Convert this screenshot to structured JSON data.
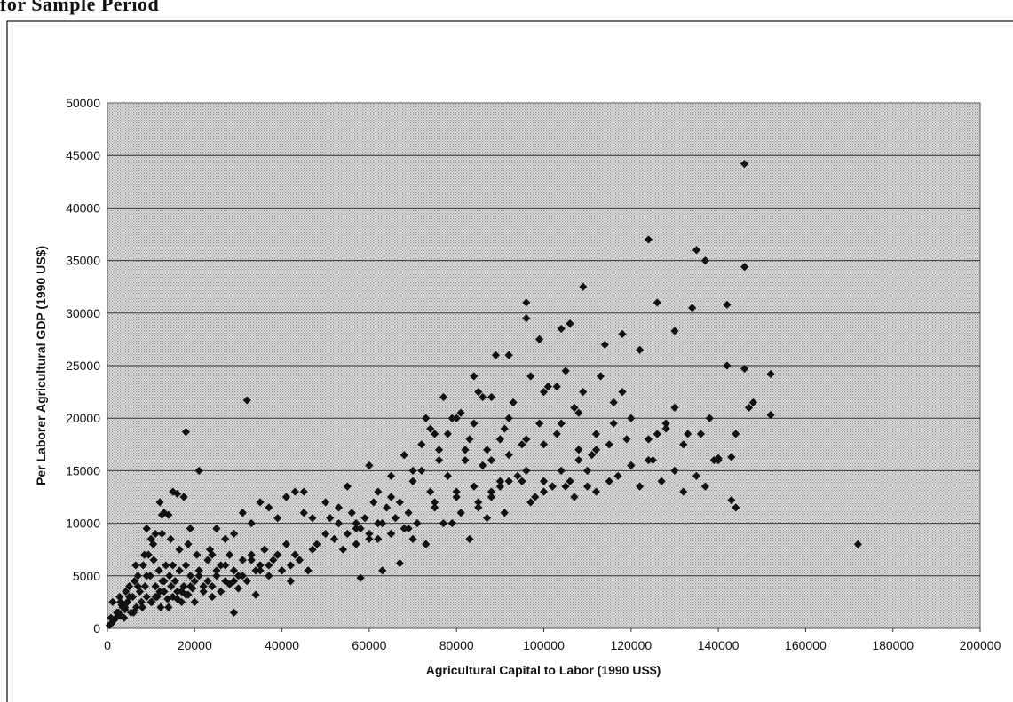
{
  "page": {
    "heading": "for Sample Period"
  },
  "chart_data": {
    "type": "scatter",
    "title": "",
    "xlabel": "Agricultural Capital to Labor (1990 US$)",
    "ylabel": "Per Laborer Agricultural GDP (1990 US$)",
    "xlim": [
      0,
      200000
    ],
    "ylim": [
      0,
      50000
    ],
    "x_ticks": [
      "0",
      "20000",
      "40000",
      "60000",
      "80000",
      "100000",
      "120000",
      "140000",
      "160000",
      "180000",
      "200000"
    ],
    "y_ticks": [
      "0",
      "5000",
      "10000",
      "15000",
      "20000",
      "25000",
      "30000",
      "35000",
      "40000",
      "45000",
      "50000"
    ],
    "grid": "horizontal",
    "background": "gray-dotted",
    "marker": "diamond",
    "marker_color": "#111111",
    "series": [
      {
        "x": [
          500,
          1000,
          1500,
          2000,
          2500,
          3000,
          3500,
          4000,
          800,
          1200,
          2200,
          2800,
          3300,
          3800,
          4200,
          4600,
          5000,
          5400,
          5800,
          6200,
          6600,
          7000,
          7400,
          7800,
          8200,
          8600,
          9000,
          9400,
          9800,
          10200,
          10600,
          11000,
          11400,
          11800,
          12200,
          12600,
          13000,
          13400,
          13800,
          14200,
          14600,
          15000,
          15500,
          16000,
          16500,
          17000,
          17500,
          18000,
          18500,
          19000,
          19500,
          20000,
          21000,
          22000,
          23000,
          24000,
          25000,
          26000,
          27000,
          28000,
          29000,
          30000,
          31000,
          32000,
          33000,
          34000,
          35000,
          36000,
          37000,
          38000,
          39000,
          40000,
          41000,
          42000,
          43000,
          44000,
          3000,
          5000,
          7000,
          9000,
          11000,
          13000,
          15000,
          17000,
          19000,
          21000,
          23000,
          25000,
          27000,
          29000,
          31000,
          33000,
          35000,
          37000,
          39000,
          6000,
          8000,
          10000,
          12000,
          14000,
          16000,
          18000,
          20000,
          22000,
          24000,
          26000,
          28000,
          30000,
          4000,
          6500,
          8500,
          10500,
          12500,
          14500,
          16500,
          18500,
          20500,
          9000,
          10000,
          11000,
          12000,
          12500,
          13000,
          14000,
          15000,
          16000,
          17500,
          19000,
          21000,
          23500,
          25000,
          27000,
          29000,
          31000,
          33000,
          35000,
          37000,
          39000,
          41000,
          43000,
          45000,
          18000,
          32000,
          24000,
          29000,
          34000,
          36000,
          40000,
          42000,
          44000,
          46000,
          47000,
          48000,
          50000,
          51000,
          52000,
          53000,
          54000,
          55000,
          56000,
          57000,
          58000,
          59000,
          60000,
          61000,
          62000,
          63000,
          64000,
          65000,
          66000,
          67000,
          68000,
          69000,
          70000,
          45000,
          50000,
          55000,
          57000,
          60000,
          62000,
          65000,
          68000,
          70000,
          72000,
          74000,
          76000,
          78000,
          80000,
          82000,
          84000,
          86000,
          88000,
          90000,
          47000,
          53000,
          58000,
          63000,
          67000,
          71000,
          75000,
          79000,
          83000,
          87000,
          91000,
          72000,
          74000,
          76000,
          78000,
          80000,
          82000,
          84000,
          86000,
          88000,
          90000,
          92000,
          94000,
          96000,
          98000,
          100000,
          102000,
          104000,
          106000,
          108000,
          110000,
          73000,
          77000,
          81000,
          85000,
          89000,
          93000,
          97000,
          101000,
          105000,
          109000,
          113000,
          75000,
          79000,
          83000,
          87000,
          91000,
          95000,
          99000,
          103000,
          107000,
          111000,
          115000,
          119000,
          84000,
          88000,
          92000,
          96000,
          100000,
          104000,
          108000,
          112000,
          116000,
          120000,
          124000,
          128000,
          92000,
          96000,
          100000,
          104000,
          108000,
          112000,
          116000,
          120000,
          124000,
          128000,
          132000,
          136000,
          140000,
          144000,
          148000,
          152000,
          96000,
          99000,
          103000,
          106000,
          109000,
          114000,
          118000,
          122000,
          126000,
          130000,
          134000,
          138000,
          142000,
          146000,
          118000,
          124000,
          126000,
          130000,
          135000,
          137000,
          140000,
          142000,
          143000,
          144000,
          146000,
          147000,
          133000,
          139000,
          143000,
          146000,
          152000,
          172000,
          62000,
          57000,
          60000,
          65000,
          69000,
          73000,
          77000,
          81000,
          85000,
          90000,
          95000,
          100000,
          105000,
          110000,
          115000,
          120000,
          125000,
          130000,
          135000,
          65000,
          70000,
          75000,
          80000,
          85000,
          88000,
          92000,
          97000,
          102000,
          107000,
          112000,
          117000,
          122000,
          127000,
          132000,
          137000
        ],
        "y": [
          300,
          500,
          800,
          1000,
          1500,
          1200,
          2000,
          1800,
          1000,
          2500,
          1500,
          3000,
          2200,
          1000,
          3500,
          2500,
          4000,
          1500,
          3000,
          4500,
          2000,
          5000,
          3500,
          2500,
          6000,
          4000,
          3000,
          7000,
          5000,
          2500,
          6500,
          4000,
          3000,
          5500,
          2000,
          4500,
          3500,
          6000,
          2800,
          5000,
          4000,
          3000,
          4500,
          3500,
          5500,
          2500,
          4000,
          6000,
          3200,
          5000,
          3800,
          4500,
          5500,
          3500,
          6500,
          4000,
          5000,
          6000,
          4500,
          7000,
          5500,
          5000,
          6500,
          4500,
          7000,
          5500,
          6000,
          7500,
          5000,
          6500,
          7000,
          5500,
          8000,
          6000,
          7000,
          6500,
          2500,
          3000,
          4000,
          5000,
          3000,
          4500,
          6000,
          3500,
          4000,
          5000,
          4500,
          5500,
          6000,
          4500,
          5000,
          6500,
          5500,
          6000,
          7000,
          1500,
          2000,
          2500,
          3500,
          2000,
          2800,
          3200,
          2500,
          4000,
          3000,
          3500,
          4200,
          3800,
          2000,
          6000,
          7000,
          8000,
          9000,
          8500,
          7500,
          8000,
          7000,
          9500,
          8500,
          9000,
          12000,
          10800,
          11000,
          10800,
          13000,
          12800,
          12500,
          9500,
          15000,
          7500,
          9500,
          8500,
          9000,
          11000,
          10000,
          12000,
          11500,
          10500,
          12500,
          13000,
          11000,
          18700,
          21700,
          7000,
          1500,
          3200,
          7500,
          5500,
          4500,
          6500,
          5500,
          7500,
          8000,
          9000,
          10500,
          8500,
          10000,
          7500,
          9000,
          11000,
          8000,
          9500,
          10500,
          9000,
          12000,
          8500,
          10000,
          11500,
          9000,
          10500,
          12000,
          9500,
          11000,
          8500,
          13000,
          12000,
          13500,
          10000,
          15500,
          13000,
          14500,
          16500,
          15000,
          17500,
          19000,
          16000,
          18500,
          20000,
          17000,
          19500,
          22000,
          16000,
          18000,
          10500,
          11500,
          4800,
          5500,
          6200,
          10000,
          11500,
          10000,
          8500,
          10500,
          11000,
          15000,
          13000,
          17000,
          14500,
          12500,
          16000,
          13500,
          15500,
          13000,
          14000,
          16500,
          14500,
          15000,
          12500,
          14000,
          13500,
          15000,
          14000,
          16000,
          13500,
          20000,
          22000,
          20500,
          22500,
          26000,
          21500,
          24000,
          23000,
          24500,
          22500,
          24000,
          18500,
          20000,
          18000,
          17000,
          19000,
          17500,
          19500,
          18500,
          21000,
          16500,
          17500,
          18000,
          24000,
          22000,
          26000,
          29500,
          22500,
          28500,
          20500,
          17000,
          19500,
          15500,
          16000,
          19000,
          20000,
          18000,
          17500,
          19500,
          17000,
          18500,
          21500,
          20000,
          18000,
          19500,
          17500,
          18500,
          16000,
          18500,
          21500,
          24200,
          31000,
          27500,
          23000,
          29000,
          32500,
          27000,
          22500,
          26500,
          18500,
          21000,
          30500,
          20000,
          30800,
          34400,
          28000,
          37000,
          31000,
          28300,
          36000,
          35000,
          16200,
          25000,
          12200,
          11500,
          24700,
          21000,
          18500,
          16000,
          16300,
          44200,
          20300,
          8000,
          10000,
          9500,
          8500,
          9000,
          9500,
          8000,
          10000,
          11000,
          12000,
          13500,
          14000,
          13000,
          13500,
          15000,
          14000,
          15500,
          16000,
          15000,
          14500,
          12500,
          14000,
          12000,
          13000,
          11500,
          12500,
          14000,
          12000,
          13500,
          12500,
          13000,
          14500,
          13500,
          14000,
          13000,
          13500
        ]
      }
    ]
  }
}
